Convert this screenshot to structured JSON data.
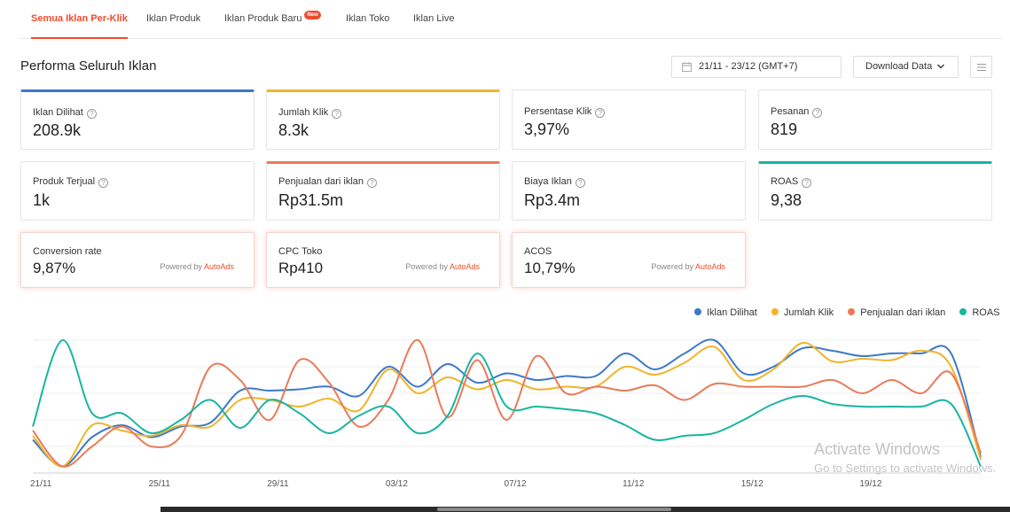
{
  "tabs": [
    {
      "label": "Semua Iklan Per-Klik",
      "active": true
    },
    {
      "label": "Iklan Produk"
    },
    {
      "label": "Iklan Produk Baru",
      "badge": "New"
    },
    {
      "label": "Iklan Toko"
    },
    {
      "label": "Iklan Live"
    }
  ],
  "header": {
    "title": "Performa Seluruh Iklan",
    "date_range": "21/11 - 23/12 (GMT+7)",
    "download_label": "Download Data"
  },
  "icons": {
    "date": "calendar-icon",
    "download": "chevron-down-icon",
    "menu": "menu-icon",
    "help": "help-circle-icon"
  },
  "metrics": [
    {
      "label": "Iklan Dilihat",
      "value": "208.9k",
      "accent": "#3d79c9"
    },
    {
      "label": "Jumlah Klik",
      "value": "8.3k",
      "accent": "#f0b429"
    },
    {
      "label": "Persentase Klik",
      "value": "3,97%"
    },
    {
      "label": "Pesanan",
      "value": "819"
    },
    {
      "label": "Produk Terjual",
      "value": "1k"
    },
    {
      "label": "Penjualan dari iklan",
      "value": "Rp31.5m",
      "accent": "#ea7a58"
    },
    {
      "label": "Biaya Iklan",
      "value": "Rp3.4m"
    },
    {
      "label": "ROAS",
      "value": "9,38",
      "accent": "#18b5a2"
    }
  ],
  "autoads": [
    {
      "label": "Conversion rate",
      "value": "9,87%"
    },
    {
      "label": "CPC Toko",
      "value": "Rp410"
    },
    {
      "label": "ACOS",
      "value": "10,79%"
    }
  ],
  "powered_by": "Powered by",
  "autoads_brand": "AutoAds",
  "watermark": {
    "line1": "Activate Windows",
    "line2": "Go to Settings to activate Windows."
  },
  "chart_data": {
    "type": "line",
    "x": [
      "21/11",
      "22/11",
      "23/11",
      "24/11",
      "25/11",
      "26/11",
      "27/11",
      "28/11",
      "29/11",
      "30/11",
      "01/12",
      "02/12",
      "03/12",
      "04/12",
      "05/12",
      "06/12",
      "07/12",
      "08/12",
      "09/12",
      "10/12",
      "11/12",
      "12/12",
      "13/12",
      "14/12",
      "15/12",
      "16/12",
      "17/12",
      "18/12",
      "19/12",
      "20/12",
      "21/12",
      "22/12",
      "23/12"
    ],
    "x_tick_labels": [
      "21/11",
      "25/11",
      "29/11",
      "03/12",
      "07/12",
      "11/12",
      "15/12",
      "19/12"
    ],
    "legend_position": "top-right",
    "grid": true,
    "ylim": [
      0,
      100
    ],
    "series": [
      {
        "name": "Iklan Dilihat",
        "color": "#3d79c9",
        "values": [
          25,
          5,
          27,
          36,
          27,
          35,
          38,
          62,
          62,
          63,
          65,
          58,
          80,
          65,
          82,
          68,
          75,
          70,
          73,
          73,
          90,
          78,
          90,
          100,
          75,
          80,
          94,
          92,
          88,
          90,
          90,
          90,
          12
        ]
      },
      {
        "name": "Jumlah Klik",
        "color": "#f0b429",
        "values": [
          28,
          5,
          36,
          32,
          28,
          36,
          35,
          55,
          55,
          50,
          56,
          47,
          78,
          60,
          72,
          63,
          70,
          63,
          65,
          65,
          80,
          74,
          83,
          95,
          70,
          78,
          98,
          84,
          86,
          85,
          92,
          80,
          10
        ]
      },
      {
        "name": "Penjualan dari iklan",
        "color": "#ea7a58",
        "values": [
          32,
          5,
          20,
          35,
          20,
          28,
          80,
          70,
          40,
          85,
          68,
          35,
          55,
          100,
          42,
          85,
          40,
          88,
          60,
          65,
          62,
          66,
          55,
          67,
          65,
          65,
          65,
          70,
          60,
          70,
          60,
          75,
          15
        ]
      },
      {
        "name": "ROAS",
        "color": "#18b5a2",
        "values": [
          35,
          100,
          45,
          45,
          30,
          40,
          55,
          34,
          55,
          45,
          30,
          43,
          50,
          30,
          43,
          90,
          50,
          50,
          48,
          45,
          36,
          25,
          28,
          30,
          40,
          52,
          58,
          52,
          50,
          50,
          50,
          52,
          5
        ]
      }
    ]
  }
}
